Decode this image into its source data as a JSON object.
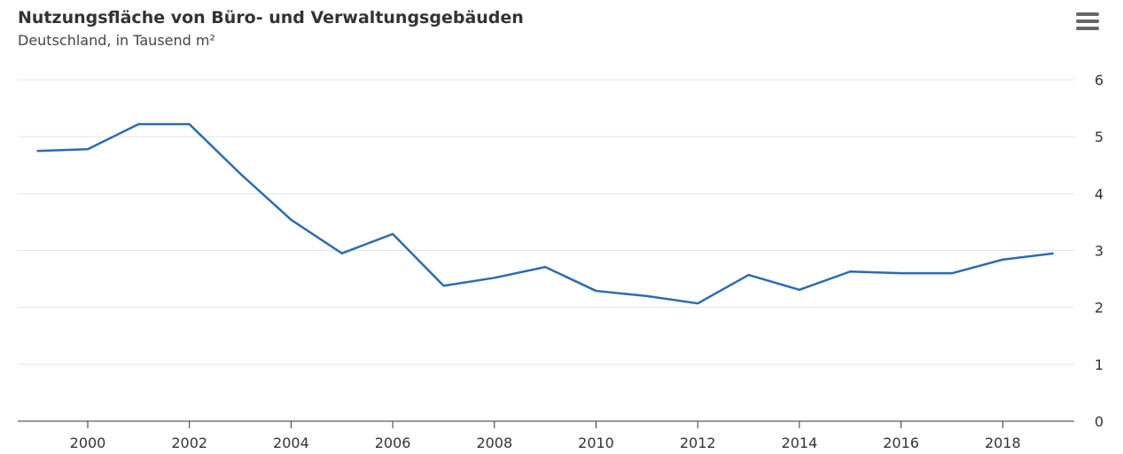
{
  "header": {
    "menu_icon": "hamburger-menu-icon"
  },
  "chart_data": {
    "type": "line",
    "title": "Nutzungsfläche von Büro- und Verwaltungsgebäuden",
    "subtitle": "Deutschland, in Tausend m²",
    "xlabel": "",
    "ylabel": "",
    "x": [
      1999,
      2000,
      2001,
      2002,
      2003,
      2004,
      2005,
      2006,
      2007,
      2008,
      2009,
      2010,
      2011,
      2012,
      2013,
      2014,
      2015,
      2016,
      2017,
      2018,
      2019
    ],
    "series": [
      {
        "values": [
          4.75,
          4.78,
          5.22,
          5.22,
          4.35,
          3.54,
          2.95,
          3.29,
          2.38,
          2.52,
          2.71,
          2.29,
          2.2,
          2.07,
          2.57,
          2.31,
          2.63,
          2.6,
          2.6,
          2.84,
          2.95
        ],
        "color": "#2b6cb0"
      }
    ],
    "xlim": [
      1998.6,
      2019.4
    ],
    "ylim": [
      0,
      6
    ],
    "xticks": [
      "2000",
      "2002",
      "2004",
      "2006",
      "2008",
      "2010",
      "2012",
      "2014",
      "2016",
      "2018"
    ],
    "yticks": [
      "0",
      "1",
      "2",
      "3",
      "4",
      "5",
      "6"
    ],
    "y_axis_side": "right",
    "grid": true,
    "legend": "none"
  }
}
